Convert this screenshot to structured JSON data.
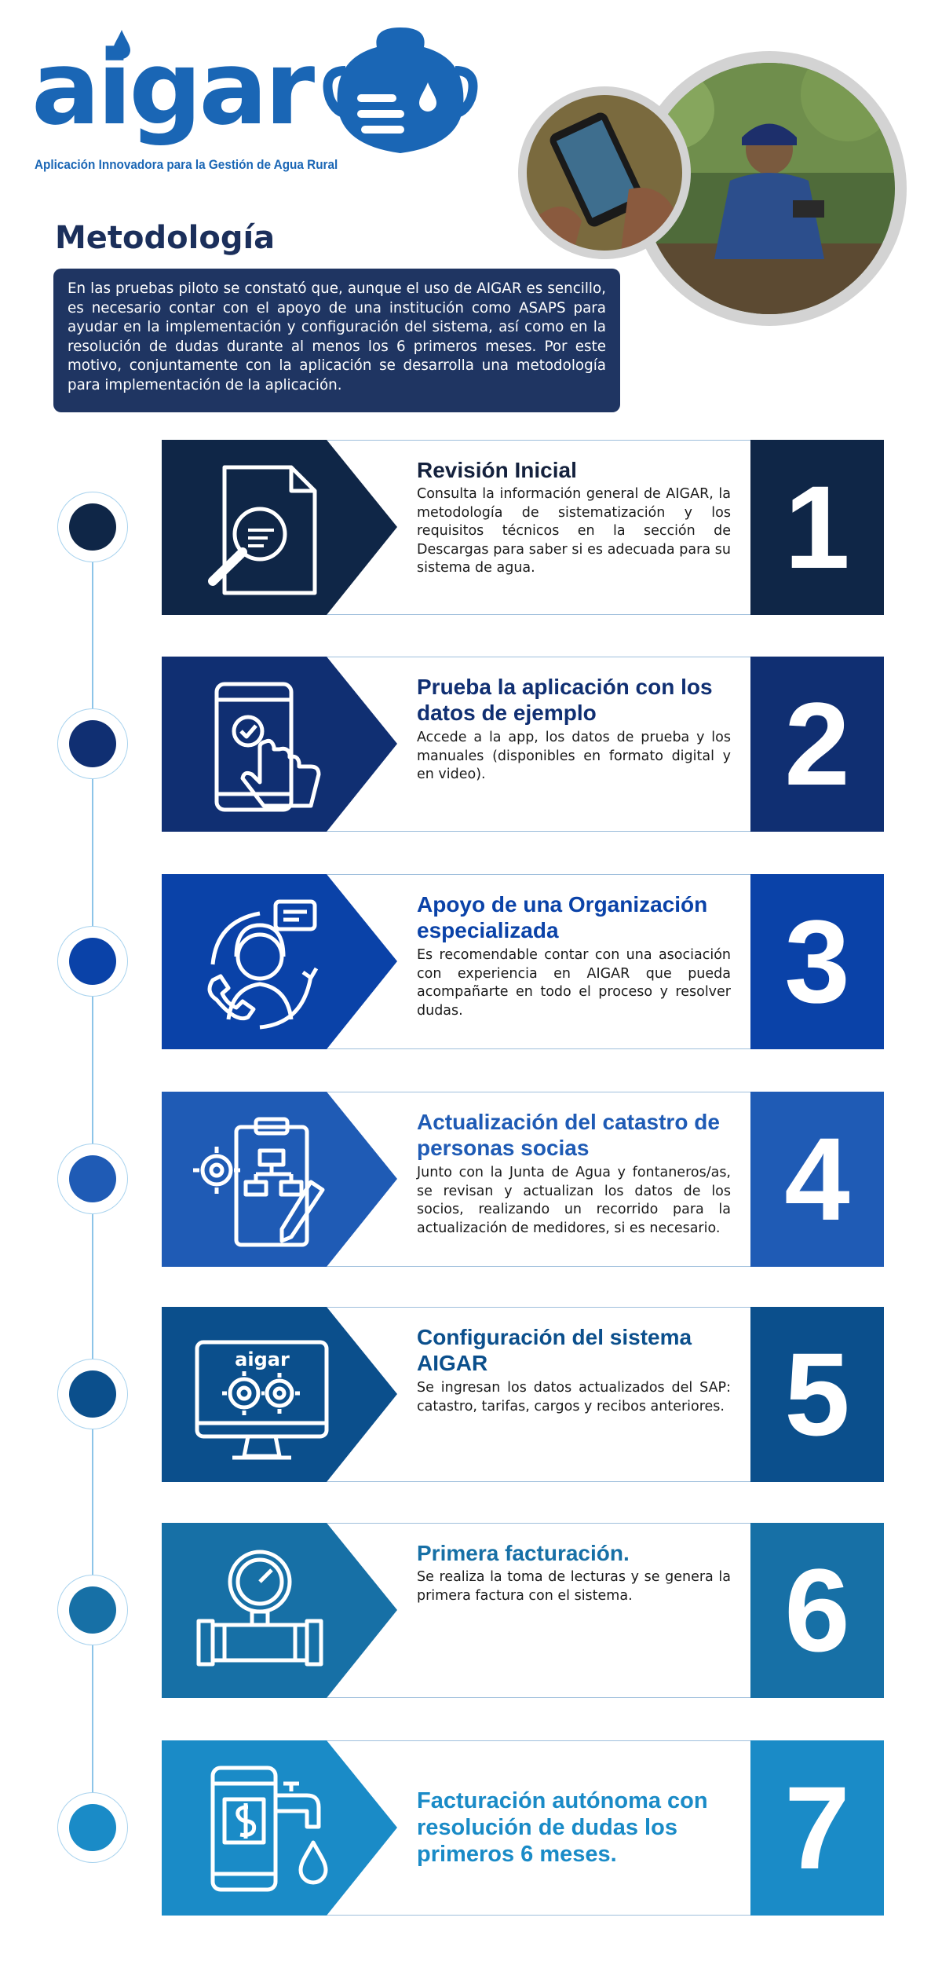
{
  "header": {
    "logo_text": "aigar",
    "tagline": "Aplicación Innovadora para la Gestión de Agua Rural"
  },
  "section": {
    "title": "Metodología",
    "intro": "En las pruebas piloto se constató que, aunque el uso de AIGAR es sencillo, es necesario contar con el apoyo de una institución como ASAPS para ayudar en la implementación y configuración del sistema, así como en la resolución de dudas durante al menos los 6 primeros meses. Por este motivo, conjuntamente con la aplicación se desarrolla una metodología para implementación de la aplicación."
  },
  "steps": [
    {
      "number": "1",
      "title": "Revisión Inicial",
      "text": "Consulta la información general de AIGAR, la metodología de sistematización y los requisitos técnicos en la sección de Descargas para saber si es adecuada para su sistema de agua.",
      "color": "#0f2647",
      "title_color": "#14213d",
      "icon": "document-search-icon"
    },
    {
      "number": "2",
      "title": "Prueba la aplicación con los datos de ejemplo",
      "text": "Accede a la app, los datos de prueba y los manuales (disponibles en formato digital y en video).",
      "color": "#102f72",
      "title_color": "#102f72",
      "icon": "phone-touch-icon"
    },
    {
      "number": "3",
      "title": "Apoyo de una Organización especializada",
      "text": "Es recomendable contar con una asociación con experiencia en AIGAR que pueda acompañarte en todo el proceso y resolver dudas.",
      "color": "#0a42a8",
      "title_color": "#0a42a8",
      "icon": "support-agent-icon"
    },
    {
      "number": "4",
      "title": "Actualización del catastro de personas socias",
      "text": "Junto con la Junta de Agua y fontaneros/as, se revisan y actualizan los datos de los socios, realizando un recorrido para la actualización de medidores, si es necesario.",
      "color": "#1f5bb5",
      "title_color": "#1f5bb5",
      "icon": "planning-icon"
    },
    {
      "number": "5",
      "title": "Configuración del sistema AIGAR",
      "text": "Se ingresan los datos actualizados del SAP: catastro, tarifas, cargos y recibos anteriores.",
      "color": "#0b4f8c",
      "title_color": "#0b4f8c",
      "icon": "computer-settings-icon",
      "icon_text": "aigar"
    },
    {
      "number": "6",
      "title": "Primera facturación.",
      "text": "Se realiza la toma de lecturas y se genera la primera factura con el sistema.",
      "color": "#1770a6",
      "title_color": "#1770a6",
      "icon": "water-meter-icon"
    },
    {
      "number": "7",
      "title": "Facturación autónoma con resolución de dudas los primeros 6 meses.",
      "text": "",
      "color": "#1a8bc7",
      "title_color": "#1a8bc7",
      "icon": "mobile-payment-icon"
    }
  ]
}
